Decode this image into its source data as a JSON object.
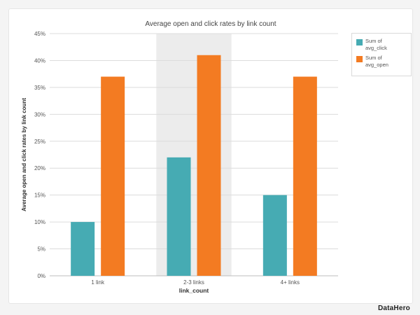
{
  "chart_data": {
    "type": "bar",
    "title": "Average open and click rates by link count",
    "xlabel": "link_count",
    "ylabel": "Average open and click rates by link count",
    "categories": [
      "1 link",
      "2-3 links",
      "4+ links"
    ],
    "highlighted_category": "2-3 links",
    "yticks": [
      "0%",
      "5%",
      "10%",
      "15%",
      "20%",
      "25%",
      "30%",
      "35%",
      "40%",
      "45%"
    ],
    "ylim": [
      0,
      45
    ],
    "grid": true,
    "legend_position": "top-right",
    "series": [
      {
        "name_line1": "Sum of",
        "name_line2": "avg_click",
        "color": "#46abb3",
        "values": [
          10,
          22,
          15
        ]
      },
      {
        "name_line1": "Sum of",
        "name_line2": "avg_open",
        "color": "#f37b22",
        "values": [
          37,
          41,
          37
        ]
      }
    ]
  },
  "colors": {
    "highlight_band": "#ececec",
    "grid": "#dcdcdc"
  },
  "brand": "DataHero"
}
